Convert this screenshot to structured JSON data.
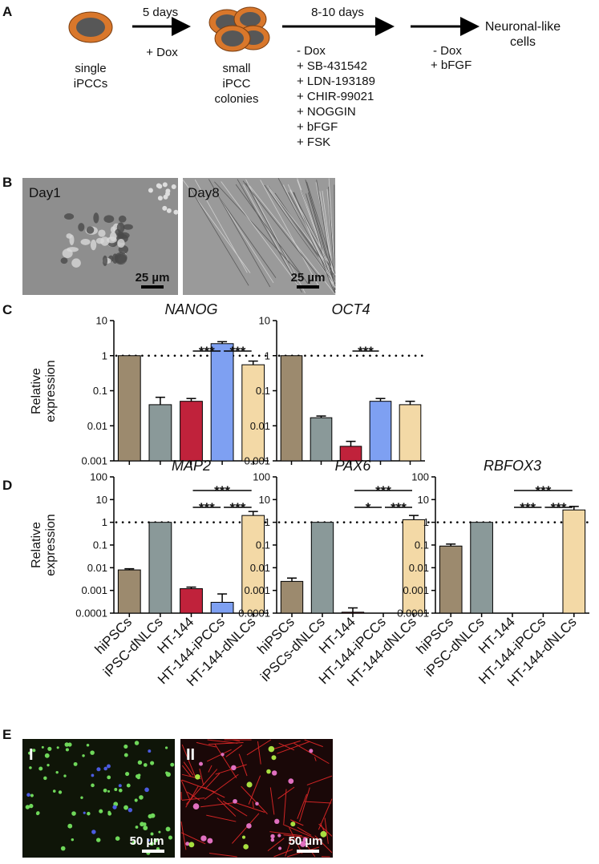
{
  "panel_a": {
    "letter": "A",
    "stage1": [
      "single",
      "iPCCs"
    ],
    "step1_time": "5 days",
    "step1_treatment": [
      "+ Dox"
    ],
    "stage2": [
      "small",
      "iPCC",
      "colonies"
    ],
    "step2_time": "8-10 days",
    "step2_treatment": [
      "- Dox",
      "+ SB-431542",
      "+ LDN-193189",
      "+ CHIR-99021",
      "+ NOGGIN",
      "+ bFGF",
      "+ FSK"
    ],
    "step3_treatment": [
      "- Dox",
      "+ bFGF"
    ],
    "stage3": [
      "Neuronal-like",
      "cells"
    ]
  },
  "panel_b": {
    "letter": "B",
    "images": [
      {
        "label": "Day1",
        "scale_bar": "25 µm"
      },
      {
        "label": "Day8",
        "scale_bar": "25 µm"
      }
    ]
  },
  "panel_c": {
    "letter": "C"
  },
  "panel_d": {
    "letter": "D"
  },
  "panel_e": {
    "letter": "E",
    "images": [
      {
        "label": "I",
        "scale_bar": "50 µm"
      },
      {
        "label": "II",
        "scale_bar": "50 µm"
      }
    ]
  },
  "chart_data": [
    {
      "type": "bar",
      "title": "NANOG",
      "ylabel": "Relative expression",
      "log": true,
      "ylim": [
        0.001,
        10
      ],
      "yticks": [
        0.001,
        0.01,
        0.1,
        1,
        10
      ],
      "hline": 1,
      "categories": [
        null,
        null,
        null,
        null,
        null
      ],
      "values": [
        1,
        0.04,
        0.05,
        2.2,
        0.55
      ],
      "errors": [
        0,
        0.025,
        0.01,
        0.3,
        0.15
      ],
      "colors": [
        "#9c8a6e",
        "#8a9999",
        "#c0223b",
        "#7ea0f2",
        "#f3d9a6"
      ],
      "annotations": [
        {
          "between": [
            2,
            3
          ],
          "label": "***"
        },
        {
          "between": [
            3,
            4
          ],
          "label": "***"
        }
      ]
    },
    {
      "type": "bar",
      "title": "OCT4",
      "log": true,
      "ylim": [
        0.001,
        10
      ],
      "yticks": [
        0.001,
        0.01,
        0.1,
        1,
        10
      ],
      "hline": 1,
      "categories": [
        null,
        null,
        null,
        null,
        null
      ],
      "values": [
        1,
        0.017,
        0.0026,
        0.05,
        0.04
      ],
      "errors": [
        0,
        0.002,
        0.001,
        0.01,
        0.01
      ],
      "colors": [
        "#9c8a6e",
        "#8a9999",
        "#c0223b",
        "#7ea0f2",
        "#f3d9a6"
      ],
      "annotations": [
        {
          "between": [
            2,
            3
          ],
          "label": "***"
        }
      ]
    },
    {
      "type": "bar",
      "title": "MAP2",
      "ylabel": "Relative expression",
      "log": true,
      "ylim": [
        0.0001,
        100
      ],
      "yticks": [
        0.0001,
        0.001,
        0.01,
        0.1,
        1,
        10,
        100
      ],
      "hline": 1,
      "categories": [
        "hiPSCs",
        "iPSC-dNLCs",
        "HT-144",
        "HT-144-iPCCs",
        "HT-144-dNLCs"
      ],
      "values": [
        0.008,
        1,
        0.0012,
        0.0003,
        2
      ],
      "errors": [
        0.001,
        0,
        0.0002,
        0.0004,
        1
      ],
      "colors": [
        "#9c8a6e",
        "#8a9999",
        "#c0223b",
        "#7ea0f2",
        "#f3d9a6"
      ],
      "annotations": [
        {
          "between": [
            2,
            3
          ],
          "label": "***"
        },
        {
          "between": [
            3,
            4
          ],
          "label": "***"
        },
        {
          "between": [
            2,
            4
          ],
          "label": "***"
        }
      ]
    },
    {
      "type": "bar",
      "title": "PAX6",
      "log": true,
      "ylim": [
        0.0001,
        100
      ],
      "yticks": [
        0.0001,
        0.001,
        0.01,
        0.1,
        1,
        10,
        100
      ],
      "hline": 1,
      "categories": [
        "hiPSCs",
        "iPSCs-dNLCs",
        "HT-144",
        "HT-144-iPCCs",
        "HT-144-dNLCs"
      ],
      "values": [
        0.0025,
        1,
        0.00011,
        null,
        1.3
      ],
      "errors": [
        0.001,
        0,
        6e-05,
        null,
        0.7
      ],
      "colors": [
        "#9c8a6e",
        "#8a9999",
        "#c0223b",
        "#7ea0f2",
        "#f3d9a6"
      ],
      "annotations": [
        {
          "between": [
            2,
            3
          ],
          "label": "*"
        },
        {
          "between": [
            3,
            4
          ],
          "label": "***"
        },
        {
          "between": [
            2,
            4
          ],
          "label": "***"
        }
      ]
    },
    {
      "type": "bar",
      "title": "RBFOX3",
      "log": true,
      "ylim": [
        0.0001,
        100
      ],
      "yticks": [
        0.0001,
        0.001,
        0.01,
        0.1,
        1,
        10,
        100
      ],
      "hline": 1,
      "categories": [
        "hiPSCs",
        "iPSC-dNLCs",
        "HT-144",
        "HT-144-iPCCs",
        "HT-144-dNLCs"
      ],
      "values": [
        0.09,
        1,
        null,
        null,
        3.5
      ],
      "errors": [
        0.02,
        0,
        null,
        null,
        1.5
      ],
      "colors": [
        "#9c8a6e",
        "#8a9999",
        "#c0223b",
        "#7ea0f2",
        "#f3d9a6"
      ],
      "annotations": [
        {
          "between": [
            2,
            3
          ],
          "label": "***"
        },
        {
          "between": [
            3,
            4
          ],
          "label": "***"
        },
        {
          "between": [
            2,
            4
          ],
          "label": "***"
        }
      ]
    }
  ]
}
